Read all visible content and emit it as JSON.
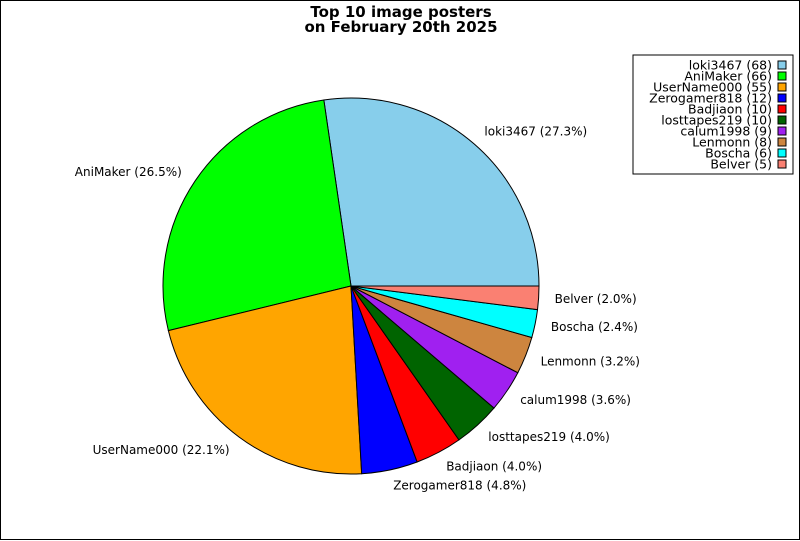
{
  "chart_data": {
    "type": "pie",
    "title_lines": [
      "Top 10 image posters",
      "on February 20th 2025"
    ],
    "legend_placement": "top-right",
    "slices": [
      {
        "name": "loki3467",
        "value": 68,
        "label": "loki3467 (27.3%)",
        "legend": "loki3467 (68)",
        "color": "#87ceeb"
      },
      {
        "name": "AniMaker",
        "value": 66,
        "label": "AniMaker (26.5%)",
        "legend": "AniMaker (66)",
        "color": "#00ff00"
      },
      {
        "name": "UserName000",
        "value": 55,
        "label": "UserName000 (22.1%)",
        "legend": "UserName000 (55)",
        "color": "#ffa500"
      },
      {
        "name": "Zerogamer818",
        "value": 12,
        "label": "Zerogamer818 (4.8%)",
        "legend": "Zerogamer818 (12)",
        "color": "#0000ff"
      },
      {
        "name": "Badjiaon",
        "value": 10,
        "label": "Badjiaon (4.0%)",
        "legend": "Badjiaon (10)",
        "color": "#ff0000"
      },
      {
        "name": "losttapes219",
        "value": 10,
        "label": "losttapes219 (4.0%)",
        "legend": "losttapes219 (10)",
        "color": "#006400"
      },
      {
        "name": "calum1998",
        "value": 9,
        "label": "calum1998 (3.6%)",
        "legend": "calum1998 (9)",
        "color": "#a020f0"
      },
      {
        "name": "Lenmonn",
        "value": 8,
        "label": "Lenmonn (3.2%)",
        "legend": "Lenmonn (8)",
        "color": "#cd853f"
      },
      {
        "name": "Boscha",
        "value": 6,
        "label": "Boscha (2.4%)",
        "legend": "Boscha (6)",
        "color": "#00ffff"
      },
      {
        "name": "Belver",
        "value": 5,
        "label": "Belver (2.0%)",
        "legend": "Belver (5)",
        "color": "#fa8072"
      }
    ]
  }
}
